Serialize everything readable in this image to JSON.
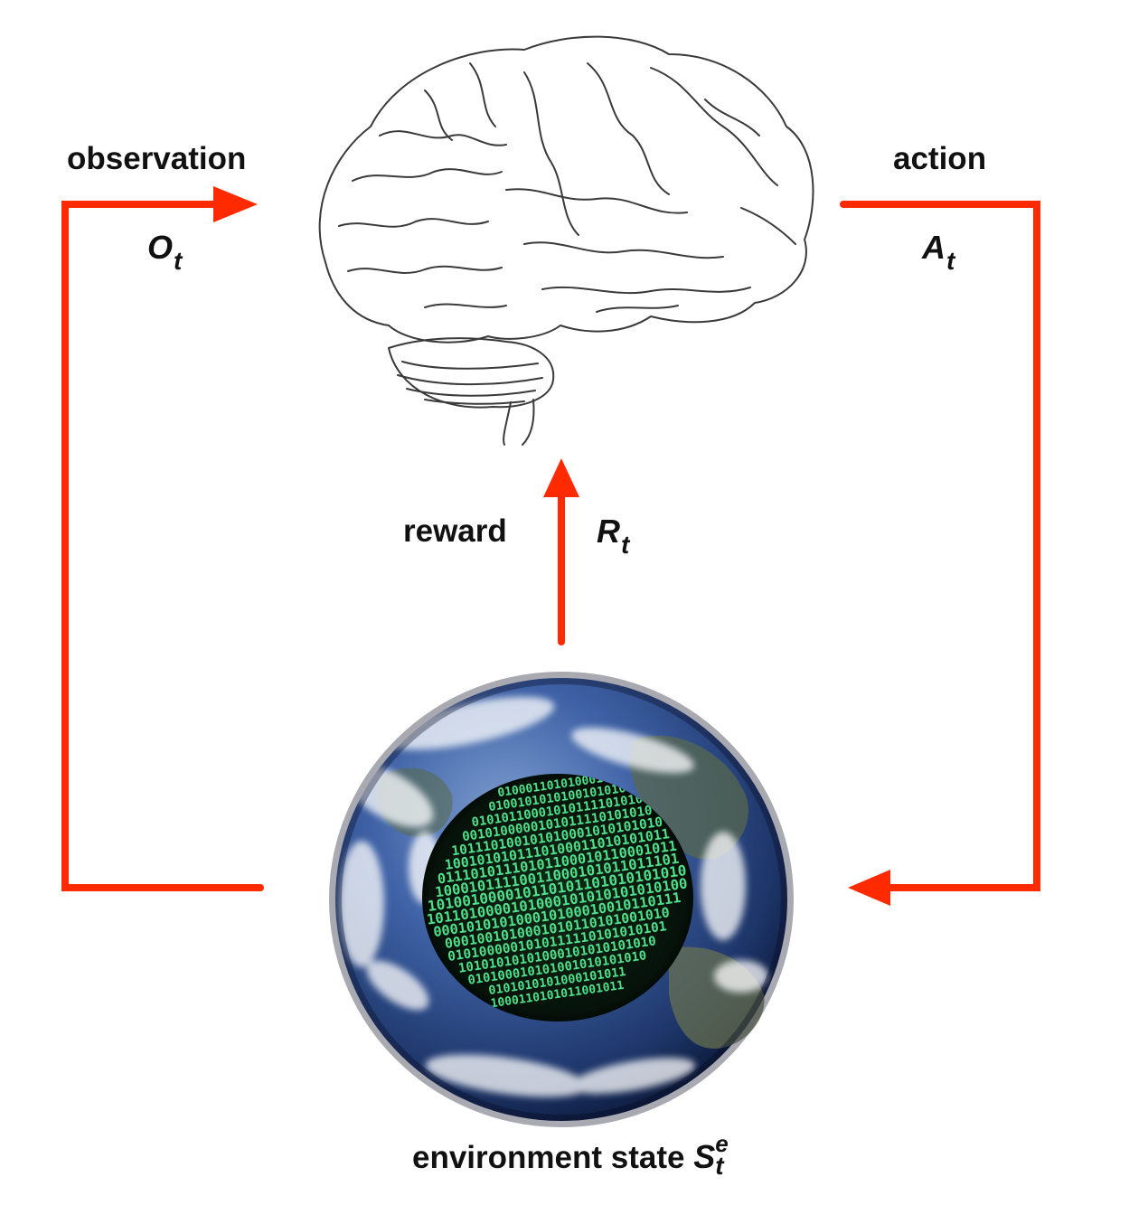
{
  "agent": {
    "image": "brain-sketch"
  },
  "environment": {
    "image": "earth-globe-with-binary-core",
    "binary_rows": [
      "01000110101000101",
      "0100101010100101010",
      "01010110001010111101010",
      "0010100000101011110101010",
      "101110100101010001010101010",
      "1001010101110100011010101011",
      "01110101110101100010110001011",
      "10001011110011000101011011101",
      "101001000010110101101010101010",
      "1011010000101000101010101010100",
      "000101010100010100010010110111",
      "0001001010001010110101001010",
      "0101000001010111110101010101",
      "10101010101000101010101010",
      "010100010101001010101010",
      "0101010101000101011",
      "1000110101011001011"
    ]
  },
  "labels": {
    "observation": "observation",
    "observation_var": "O",
    "observation_sub": "t",
    "action": "action",
    "action_var": "A",
    "action_sub": "t",
    "reward": "reward",
    "reward_var": "R",
    "reward_sub": "t",
    "environment_text": "environment state",
    "environment_var": "S",
    "environment_sup": "e",
    "environment_sub": "t"
  },
  "colors": {
    "arrow": "#ff2a00",
    "text": "#111111",
    "brain_stroke": "#3a3a3a",
    "ocean": "#2d4f8f",
    "core": "#0a1a10",
    "binary_digits": "#4fe08a"
  }
}
